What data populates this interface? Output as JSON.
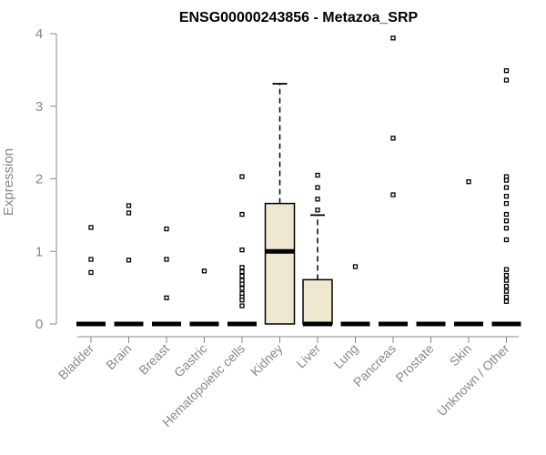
{
  "chart_data": {
    "type": "box",
    "title": "ENSG00000243856 - Metazoa_SRP",
    "xlabel": "",
    "ylabel": "Expression",
    "ylim": [
      0,
      4
    ],
    "yticks": [
      0,
      1,
      2,
      3,
      4
    ],
    "grid": false,
    "categories": [
      "Bladder",
      "Brain",
      "Breast",
      "Gastric",
      "Hematopoietic cells",
      "Kidney",
      "Liver",
      "Lung",
      "Pancreas",
      "Prostate",
      "Skin",
      "Unknown / Other"
    ],
    "boxes": [
      {
        "name": "Bladder",
        "q1": 0,
        "median": 0,
        "q3": 0,
        "whisker_low": 0,
        "whisker_high": 0,
        "outliers": [
          1.33,
          0.89,
          0.71
        ]
      },
      {
        "name": "Brain",
        "q1": 0,
        "median": 0,
        "q3": 0,
        "whisker_low": 0,
        "whisker_high": 0,
        "outliers": [
          1.63,
          1.53,
          0.88
        ]
      },
      {
        "name": "Breast",
        "q1": 0,
        "median": 0,
        "q3": 0,
        "whisker_low": 0,
        "whisker_high": 0,
        "outliers": [
          1.31,
          0.89,
          0.36
        ]
      },
      {
        "name": "Gastric",
        "q1": 0,
        "median": 0,
        "q3": 0,
        "whisker_low": 0,
        "whisker_high": 0,
        "outliers": [
          0.73
        ]
      },
      {
        "name": "Hematopoietic cells",
        "q1": 0,
        "median": 0,
        "q3": 0,
        "whisker_low": 0,
        "whisker_high": 0,
        "outliers": [
          2.03,
          1.51,
          1.02,
          0.78,
          0.72,
          0.66,
          0.6,
          0.55,
          0.49,
          0.42,
          0.37,
          0.33,
          0.25
        ]
      },
      {
        "name": "Kidney",
        "q1": 0,
        "median": 1.0,
        "q3": 1.66,
        "whisker_low": 0,
        "whisker_high": 3.31,
        "outliers": []
      },
      {
        "name": "Liver",
        "q1": 0,
        "median": 0,
        "q3": 0.61,
        "whisker_low": 0,
        "whisker_high": 1.5,
        "outliers": [
          2.05,
          1.88,
          1.72,
          1.57
        ]
      },
      {
        "name": "Lung",
        "q1": 0,
        "median": 0,
        "q3": 0,
        "whisker_low": 0,
        "whisker_high": 0,
        "outliers": [
          0.79
        ]
      },
      {
        "name": "Pancreas",
        "q1": 0,
        "median": 0,
        "q3": 0,
        "whisker_low": 0,
        "whisker_high": 0,
        "outliers": [
          3.94,
          2.56,
          1.78
        ]
      },
      {
        "name": "Prostate",
        "q1": 0,
        "median": 0,
        "q3": 0,
        "whisker_low": 0,
        "whisker_high": 0,
        "outliers": []
      },
      {
        "name": "Skin",
        "q1": 0,
        "median": 0,
        "q3": 0,
        "whisker_low": 0,
        "whisker_high": 0,
        "outliers": [
          1.96
        ]
      },
      {
        "name": "Unknown / Other",
        "q1": 0,
        "median": 0,
        "q3": 0,
        "whisker_low": 0,
        "whisker_high": 0,
        "outliers": [
          3.49,
          3.36,
          2.03,
          1.98,
          1.88,
          1.76,
          1.66,
          1.51,
          1.42,
          1.32,
          1.16,
          0.75,
          0.67,
          0.6,
          0.52,
          0.45,
          0.37,
          0.31
        ]
      }
    ]
  },
  "colors": {
    "box_fill": "#eee8d0",
    "axis": "#888888",
    "ink": "#000000"
  }
}
